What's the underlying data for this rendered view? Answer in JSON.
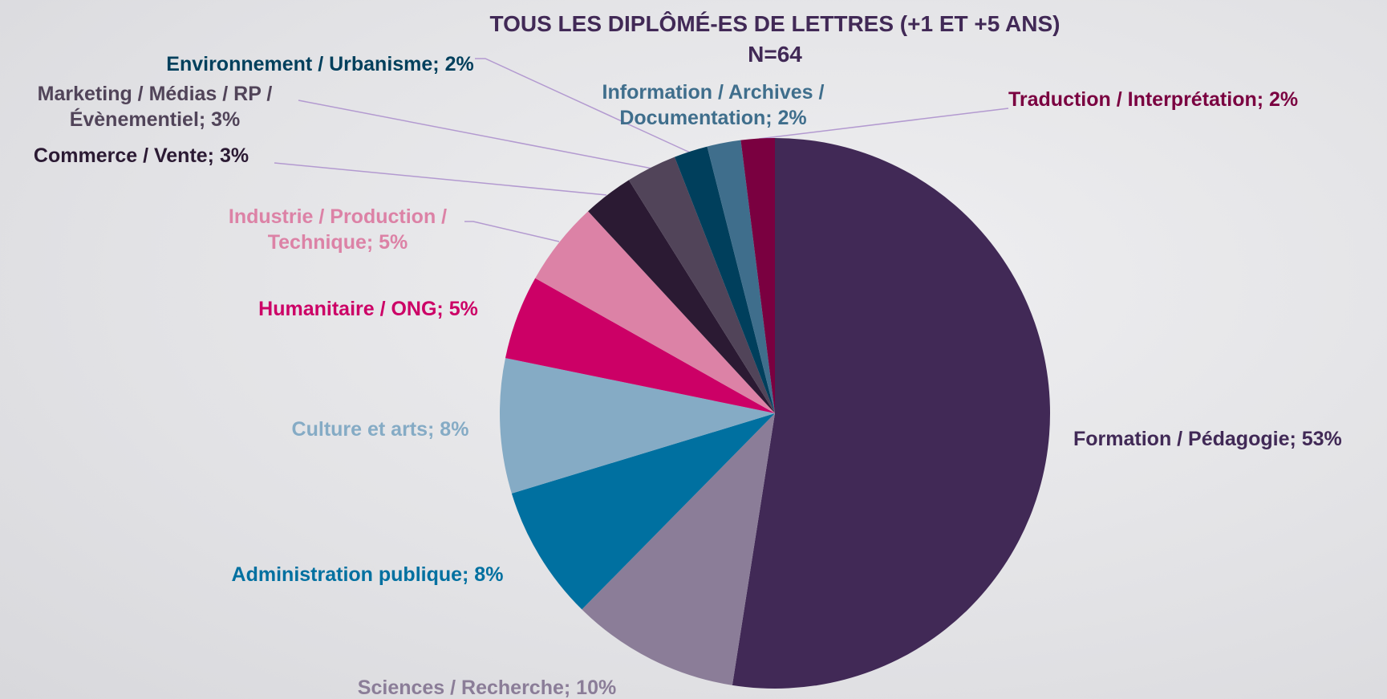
{
  "chart_data": {
    "type": "pie",
    "title": "TOUS LES DIPLÔMÉ-ES DE LETTRES (+1 ET +5 ANS)",
    "subtitle": "N=64",
    "labels": [
      "Formation / Pédagogie; 53%",
      "Sciences / Recherche; 10%",
      "Administration publique; 8%",
      "Culture et arts; 8%",
      "Humanitaire / ONG; 5%",
      "Industrie / Production / Technique; 5%",
      "Commerce / Vente; 3%",
      "Marketing / Médias / RP / Évènementiel; 3%",
      "Environnement / Urbanisme; 2%",
      "Information / Archives / Documentation; 2%",
      "Traduction / Interprétation; 2%"
    ],
    "values": [
      53,
      10,
      8,
      8,
      5,
      5,
      3,
      3,
      2,
      2,
      2
    ],
    "colors": [
      "#412956",
      "#8b7d98",
      "#0070a0",
      "#85abc5",
      "#cc0066",
      "#dc82a6",
      "#2b1a33",
      "#514459",
      "#003f5c",
      "#3f6e8c",
      "#7a0040"
    ]
  }
}
